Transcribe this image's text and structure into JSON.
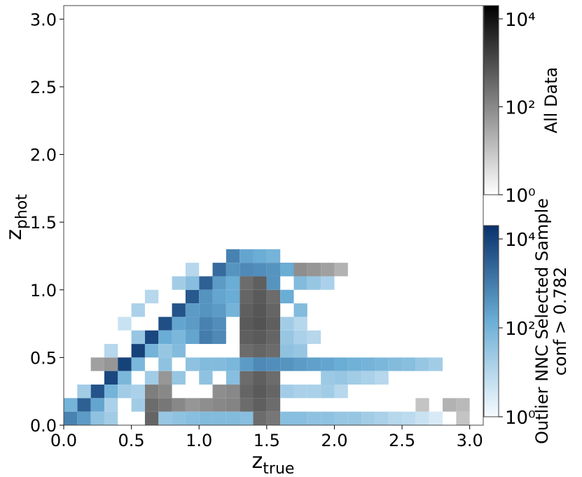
{
  "chart_data": {
    "type": "heatmap",
    "xlabel": {
      "text": "z",
      "subscript": "true"
    },
    "ylabel": {
      "text": "z",
      "subscript": "phot"
    },
    "xlim": [
      0,
      3.1
    ],
    "ylim": [
      0,
      3.1
    ],
    "xticks": [
      {
        "value": 0,
        "label": "0.0"
      },
      0.5,
      {
        "value": 1,
        "label": "1.0"
      },
      1.5,
      {
        "value": 2,
        "label": "2.0"
      },
      2.5,
      {
        "value": 3,
        "label": "3.0"
      }
    ],
    "yticks": [
      {
        "value": 0,
        "label": "0.0"
      },
      0.5,
      {
        "value": 1,
        "label": "1.0"
      },
      1.5,
      {
        "value": 2,
        "label": "2.0"
      },
      2.5,
      {
        "value": 3,
        "label": "3.0"
      }
    ],
    "bin_size": 0.1,
    "log_color": true,
    "layers": [
      {
        "name": [
          "All Data"
        ],
        "colors": [
          "#ffffff",
          "#000000"
        ],
        "clim": [
          1,
          20000
        ],
        "ticks": [
          {
            "value": 1,
            "label": "10⁰"
          },
          {
            "value": 100,
            "label": "10²"
          },
          {
            "value": 10000,
            "label": "10⁴"
          }
        ],
        "cells": [
          [
            1.3,
            0.0,
            200
          ],
          [
            1.4,
            0.0,
            300
          ],
          [
            1.5,
            0.0,
            200
          ],
          [
            1.3,
            0.1,
            300
          ],
          [
            1.4,
            0.1,
            500
          ],
          [
            1.5,
            0.1,
            300
          ],
          [
            1.3,
            0.2,
            400
          ],
          [
            1.4,
            0.2,
            600
          ],
          [
            1.5,
            0.2,
            400
          ],
          [
            1.3,
            0.3,
            300
          ],
          [
            1.4,
            0.3,
            500
          ],
          [
            1.5,
            0.3,
            300
          ],
          [
            1.3,
            0.5,
            300
          ],
          [
            1.4,
            0.5,
            400
          ],
          [
            1.5,
            0.5,
            300
          ],
          [
            1.3,
            0.6,
            500
          ],
          [
            1.4,
            0.6,
            600
          ],
          [
            1.5,
            0.6,
            400
          ],
          [
            1.3,
            0.7,
            600
          ],
          [
            1.4,
            0.7,
            800
          ],
          [
            1.5,
            0.7,
            500
          ],
          [
            1.3,
            0.8,
            500
          ],
          [
            1.4,
            0.8,
            700
          ],
          [
            1.5,
            0.8,
            400
          ],
          [
            1.3,
            0.9,
            400
          ],
          [
            1.4,
            0.9,
            600
          ],
          [
            1.5,
            0.9,
            300
          ],
          [
            1.3,
            1.0,
            300
          ],
          [
            1.4,
            1.0,
            500
          ],
          [
            1.6,
            1.1,
            100
          ],
          [
            1.7,
            1.1,
            80
          ],
          [
            1.8,
            1.1,
            60
          ],
          [
            1.9,
            1.1,
            40
          ],
          [
            2.0,
            1.1,
            20
          ],
          [
            0.6,
            0.0,
            400
          ],
          [
            0.7,
            0.0,
            300
          ],
          [
            0.6,
            0.1,
            300
          ],
          [
            0.7,
            0.1,
            200
          ],
          [
            0.6,
            0.2,
            150
          ],
          [
            0.7,
            0.2,
            100
          ],
          [
            0.6,
            0.3,
            80
          ],
          [
            0.7,
            0.3,
            60
          ],
          [
            0.2,
            0.4,
            40
          ],
          [
            0.3,
            0.4,
            60
          ],
          [
            0.4,
            0.4,
            50
          ],
          [
            0.8,
            0.1,
            100
          ],
          [
            0.9,
            0.1,
            60
          ],
          [
            1.0,
            0.1,
            80
          ],
          [
            1.1,
            0.1,
            100
          ],
          [
            1.2,
            0.1,
            120
          ],
          [
            1.1,
            0.2,
            80
          ],
          [
            1.2,
            0.2,
            100
          ],
          [
            2.8,
            0.1,
            20
          ],
          [
            2.9,
            0.1,
            15
          ],
          [
            2.9,
            0.0,
            10
          ],
          [
            2.6,
            0.1,
            10
          ]
        ]
      },
      {
        "name": [
          "Outlier NNC Selected Sample",
          "conf > 0.782"
        ],
        "colors": [
          "#f7fbff",
          "#6baed6",
          "#08306b"
        ],
        "clim": [
          1,
          20000
        ],
        "ticks": [
          {
            "value": 1,
            "label": "10⁰"
          },
          {
            "value": 100,
            "label": "10²"
          },
          {
            "value": 10000,
            "label": "10⁴"
          }
        ],
        "cells": [
          [
            0.0,
            0.0,
            800
          ],
          [
            0.1,
            0.1,
            3000
          ],
          [
            0.2,
            0.2,
            5000
          ],
          [
            0.3,
            0.3,
            8000
          ],
          [
            0.4,
            0.4,
            10000
          ],
          [
            0.5,
            0.5,
            10000
          ],
          [
            0.6,
            0.6,
            8000
          ],
          [
            0.7,
            0.7,
            6000
          ],
          [
            0.8,
            0.8,
            5000
          ],
          [
            0.9,
            0.9,
            4000
          ],
          [
            1.0,
            1.0,
            3000
          ],
          [
            1.1,
            1.1,
            2000
          ],
          [
            1.2,
            1.2,
            800
          ],
          [
            1.3,
            1.1,
            600
          ],
          [
            1.4,
            1.1,
            500
          ],
          [
            1.5,
            1.0,
            400
          ],
          [
            1.6,
            0.9,
            150
          ],
          [
            1.7,
            0.8,
            60
          ],
          [
            0.1,
            0.0,
            300
          ],
          [
            0.2,
            0.1,
            200
          ],
          [
            0.3,
            0.2,
            100
          ],
          [
            0.4,
            0.3,
            80
          ],
          [
            0.5,
            0.4,
            80
          ],
          [
            0.6,
            0.5,
            100
          ],
          [
            0.7,
            0.6,
            150
          ],
          [
            0.8,
            0.7,
            200
          ],
          [
            0.9,
            0.8,
            300
          ],
          [
            1.0,
            0.9,
            400
          ],
          [
            1.1,
            1.0,
            300
          ],
          [
            1.2,
            1.1,
            400
          ],
          [
            0.0,
            0.1,
            100
          ],
          [
            0.1,
            0.2,
            20
          ],
          [
            0.5,
            0.6,
            30
          ],
          [
            0.9,
            1.0,
            50
          ],
          [
            0.3,
            0.1,
            15
          ],
          [
            0.4,
            0.2,
            20
          ],
          [
            0.5,
            0.2,
            15
          ],
          [
            0.6,
            0.3,
            20
          ],
          [
            0.7,
            0.4,
            40
          ],
          [
            0.8,
            0.5,
            60
          ],
          [
            0.8,
            0.6,
            80
          ],
          [
            0.9,
            0.6,
            200
          ],
          [
            0.9,
            0.7,
            300
          ],
          [
            1.0,
            0.6,
            1000
          ],
          [
            1.0,
            0.7,
            800
          ],
          [
            1.0,
            0.8,
            400
          ],
          [
            1.1,
            0.6,
            600
          ],
          [
            1.1,
            0.7,
            500
          ],
          [
            1.1,
            0.8,
            300
          ],
          [
            1.1,
            0.9,
            200
          ],
          [
            1.2,
            0.9,
            150
          ],
          [
            1.2,
            1.0,
            150
          ],
          [
            1.2,
            0.8,
            100
          ],
          [
            0.7,
            0.5,
            30
          ],
          [
            0.8,
            0.3,
            30
          ],
          [
            0.9,
            0.4,
            40
          ],
          [
            1.0,
            0.4,
            60
          ],
          [
            1.1,
            0.4,
            60
          ],
          [
            1.2,
            0.4,
            80
          ],
          [
            1.0,
            0.3,
            40
          ],
          [
            1.2,
            0.3,
            50
          ],
          [
            0.5,
            0.1,
            20
          ],
          [
            0.2,
            0.0,
            40
          ],
          [
            0.3,
            0.0,
            20
          ],
          [
            0.7,
            0.0,
            30
          ],
          [
            0.8,
            0.0,
            40
          ],
          [
            0.9,
            0.0,
            50
          ],
          [
            1.0,
            0.0,
            60
          ],
          [
            1.1,
            0.0,
            60
          ],
          [
            1.2,
            0.0,
            60
          ],
          [
            1.3,
            0.0,
            50
          ],
          [
            1.6,
            0.0,
            50
          ],
          [
            1.7,
            0.0,
            50
          ],
          [
            1.8,
            0.0,
            40
          ],
          [
            1.9,
            0.0,
            40
          ],
          [
            2.0,
            0.0,
            30
          ],
          [
            2.1,
            0.0,
            30
          ],
          [
            2.2,
            0.0,
            20
          ],
          [
            2.3,
            0.0,
            15
          ],
          [
            2.4,
            0.0,
            10
          ],
          [
            2.5,
            0.0,
            8
          ],
          [
            2.6,
            0.0,
            5
          ],
          [
            2.7,
            0.0,
            3
          ],
          [
            1.3,
            0.4,
            300
          ],
          [
            1.4,
            0.4,
            600
          ],
          [
            1.5,
            0.4,
            500
          ],
          [
            1.6,
            0.4,
            400
          ],
          [
            1.7,
            0.4,
            300
          ],
          [
            1.8,
            0.4,
            250
          ],
          [
            1.9,
            0.4,
            200
          ],
          [
            2.0,
            0.4,
            150
          ],
          [
            2.1,
            0.4,
            120
          ],
          [
            2.2,
            0.4,
            100
          ],
          [
            2.3,
            0.4,
            80
          ],
          [
            2.4,
            0.4,
            60
          ],
          [
            2.5,
            0.4,
            50
          ],
          [
            2.6,
            0.4,
            30
          ],
          [
            2.7,
            0.4,
            20
          ],
          [
            1.6,
            0.2,
            20
          ],
          [
            1.7,
            0.2,
            15
          ],
          [
            1.8,
            0.2,
            15
          ],
          [
            1.9,
            0.2,
            20
          ],
          [
            2.0,
            0.2,
            10
          ],
          [
            1.6,
            0.5,
            40
          ],
          [
            1.7,
            0.5,
            30
          ],
          [
            1.6,
            0.6,
            30
          ],
          [
            1.7,
            0.6,
            15
          ],
          [
            1.8,
            0.6,
            10
          ],
          [
            1.6,
            0.7,
            20
          ],
          [
            1.7,
            0.7,
            10
          ],
          [
            2.0,
            0.3,
            30
          ],
          [
            2.1,
            0.3,
            20
          ],
          [
            2.2,
            0.3,
            15
          ],
          [
            1.9,
            0.3,
            25
          ],
          [
            2.3,
            0.3,
            10
          ],
          [
            1.3,
            1.2,
            200
          ],
          [
            1.4,
            1.2,
            150
          ],
          [
            1.5,
            1.2,
            100
          ],
          [
            1.5,
            1.1,
            400
          ],
          [
            1.6,
            1.1,
            150
          ],
          [
            1.7,
            1.0,
            60
          ],
          [
            1.8,
            1.0,
            30
          ],
          [
            1.9,
            1.0,
            15
          ],
          [
            0.5,
            0.8,
            15
          ],
          [
            0.6,
            0.9,
            10
          ],
          [
            0.4,
            0.7,
            5
          ],
          [
            0.3,
            0.5,
            10
          ],
          [
            0.8,
            1.0,
            20
          ],
          [
            0.9,
            1.1,
            10
          ]
        ]
      }
    ]
  }
}
